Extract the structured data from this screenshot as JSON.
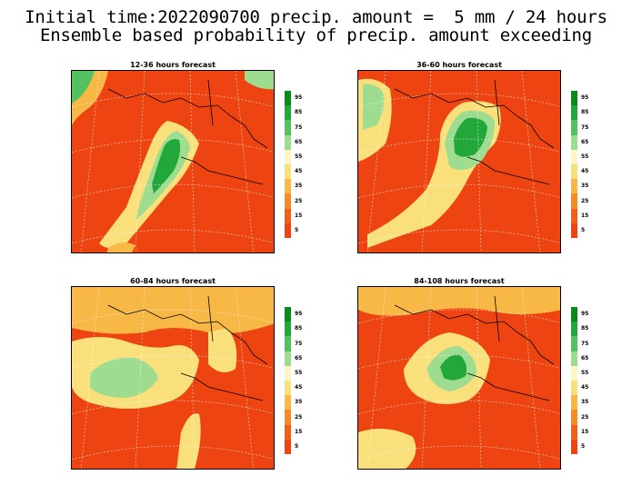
{
  "title_line1": "Initial time:2022090700 precip. amount =  5 mm / 24 hours",
  "title_line2": "Ensemble based probability of precip. amount exceeding",
  "panels": [
    {
      "title": "12-36 hours forecast"
    },
    {
      "title": "36-60 hours forecast"
    },
    {
      "title": "60-84 hours forecast"
    },
    {
      "title": "84-108 hours forecast"
    }
  ],
  "legend": {
    "labels": [
      "95",
      "85",
      "75",
      "65",
      "55",
      "45",
      "35",
      "25",
      "15",
      "5"
    ],
    "colors": [
      "#0a8a1a",
      "#22a83a",
      "#55c060",
      "#9edc90",
      "#fff6c8",
      "#f9e07a",
      "#f7b845",
      "#f58a2a",
      "#f06018",
      "#ee4411"
    ]
  }
}
